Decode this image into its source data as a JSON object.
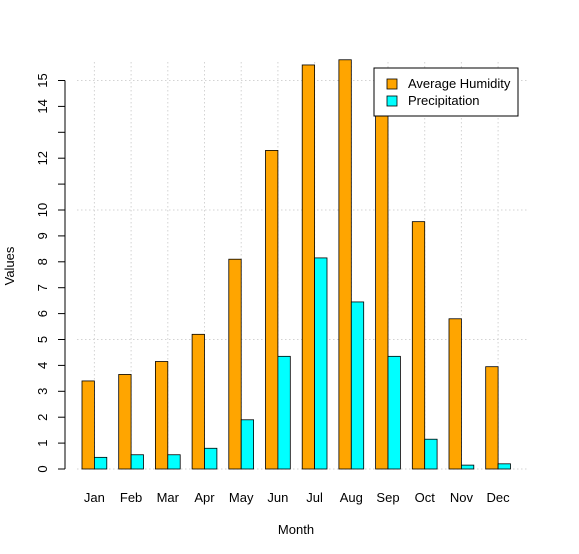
{
  "chart_data": {
    "type": "bar",
    "title": "",
    "xlabel": "Month",
    "ylabel": "Values",
    "categories": [
      "Jan",
      "Feb",
      "Mar",
      "Apr",
      "May",
      "Jun",
      "Jul",
      "Aug",
      "Sep",
      "Oct",
      "Nov",
      "Dec"
    ],
    "series": [
      {
        "name": "Average Humidity",
        "color": "#FFA500",
        "values": [
          3.4,
          3.65,
          4.15,
          5.2,
          8.1,
          12.3,
          15.6,
          15.8,
          14.2,
          9.55,
          5.8,
          3.95
        ]
      },
      {
        "name": "Precipitation",
        "color": "#00FFFF",
        "values": [
          0.45,
          0.55,
          0.55,
          0.8,
          1.9,
          4.35,
          8.15,
          6.45,
          4.35,
          1.15,
          0.15,
          0.2
        ]
      }
    ],
    "y_ticks": [
      0,
      1,
      2,
      3,
      4,
      5,
      6,
      7,
      8,
      9,
      10,
      12,
      14,
      15
    ],
    "y_tick_labels": [
      "0",
      "1",
      "2",
      "3",
      "4",
      "5",
      "6",
      "7",
      "8",
      "9",
      "10",
      "12",
      "14",
      "15"
    ],
    "y_minor_ticks": [
      11,
      13
    ],
    "y_gridlines": [
      0,
      5,
      10,
      15
    ],
    "ylim": [
      0,
      15.6
    ],
    "grid": "dotted",
    "legend_position": "top-right"
  }
}
